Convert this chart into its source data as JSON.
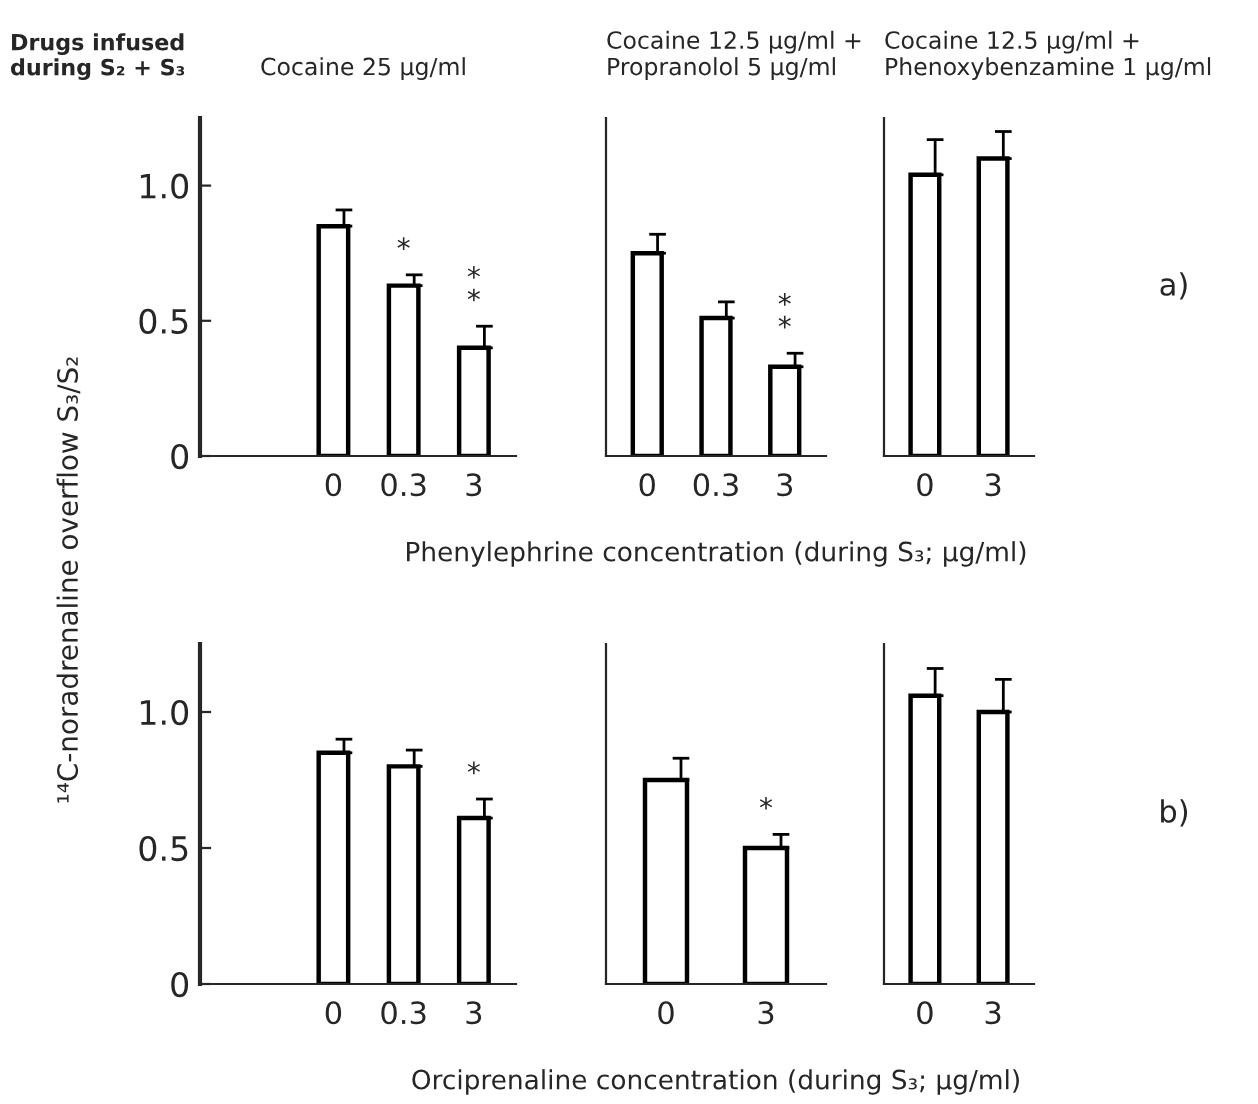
{
  "chart_data": [
    {
      "type": "bar",
      "title": "Cocaine 25 μg/ml",
      "ylabel": "¹⁴C-noradrenaline overflow S₃/S₂",
      "categories": [
        "0",
        "0.3",
        "3"
      ],
      "ylim": [
        0,
        1.25
      ],
      "yticks": [
        0,
        0.5,
        {
          "value": 1.0,
          "label": "1.0"
        }
      ],
      "color": "#ffffff",
      "grid": false,
      "legend": false,
      "values": [
        0.85,
        0.63,
        0.4
      ],
      "errors": [
        [
          0.85,
          0.91
        ],
        [
          0.63,
          0.67
        ],
        [
          0.4,
          0.48
        ]
      ],
      "annotations": [
        "Drugs infused\nduring S₂ + S₃",
        {
          "text": "*",
          "x": "0.3",
          "y": 0.63
        },
        {
          "text": "*\n*",
          "x": "3",
          "y": 0.4
        }
      ]
    },
    {
      "type": "bar",
      "title": "Cocaine 12.5 μg/ml +\nPropranolol 5 μg/ml",
      "xlabel": "Phenylephrine concentration (during S₃; μg/ml)",
      "categories": [
        "0",
        "0.3",
        "3"
      ],
      "ylim": [
        0,
        1.25
      ],
      "tick_labels": "x",
      "color": "#ffffff",
      "grid": false,
      "legend": false,
      "values": [
        0.75,
        0.51,
        0.33
      ],
      "errors": [
        [
          0.75,
          0.82
        ],
        [
          0.51,
          0.57
        ],
        [
          0.33,
          0.38
        ]
      ],
      "annotations": [
        {
          "text": "*\n*",
          "x": "3",
          "y": 0.33
        }
      ]
    },
    {
      "type": "bar",
      "title": "Cocaine 12.5 μg/ml +\nPhenoxybenzamine 1 μg/ml",
      "categories": [
        "0",
        "3"
      ],
      "ylim": [
        0,
        1.25
      ],
      "tick_labels": "x",
      "color": "#ffffff",
      "grid": false,
      "legend": false,
      "values": [
        1.04,
        1.1
      ],
      "errors": [
        [
          1.04,
          1.17
        ],
        [
          1.1,
          1.2
        ]
      ],
      "annotations": [
        "a)"
      ]
    },
    {
      "type": "bar",
      "categories": [
        "0",
        "0.3",
        "3"
      ],
      "ylim": [
        0,
        1.25
      ],
      "yticks": [
        0,
        0.5,
        {
          "value": 1.0,
          "label": "1.0"
        }
      ],
      "color": "#ffffff",
      "grid": false,
      "legend": false,
      "values": [
        0.85,
        0.8,
        0.61
      ],
      "errors": [
        [
          0.85,
          0.9
        ],
        [
          0.8,
          0.86
        ],
        [
          0.61,
          0.68
        ]
      ],
      "annotations": [
        {
          "text": "*",
          "x": "3",
          "y": 0.61
        }
      ]
    },
    {
      "type": "bar",
      "xlabel": "Orciprenaline concentration (during S₃; μg/ml)",
      "categories": [
        "0",
        "3"
      ],
      "ylim": [
        0,
        1.25
      ],
      "tick_labels": "x",
      "color": "#ffffff",
      "grid": false,
      "legend": false,
      "values": [
        0.75,
        0.5
      ],
      "errors": [
        [
          0.75,
          0.83
        ],
        [
          0.5,
          0.55
        ]
      ],
      "annotations": [
        {
          "text": "*",
          "x": "3",
          "y": 0.5
        }
      ]
    },
    {
      "type": "bar",
      "categories": [
        "0",
        "3"
      ],
      "ylim": [
        0,
        1.25
      ],
      "tick_labels": "x",
      "color": "#ffffff",
      "grid": false,
      "legend": false,
      "values": [
        1.06,
        1.0
      ],
      "errors": [
        [
          1.06,
          1.16
        ],
        [
          1.0,
          1.12
        ]
      ],
      "annotations": [
        "b)"
      ]
    }
  ]
}
